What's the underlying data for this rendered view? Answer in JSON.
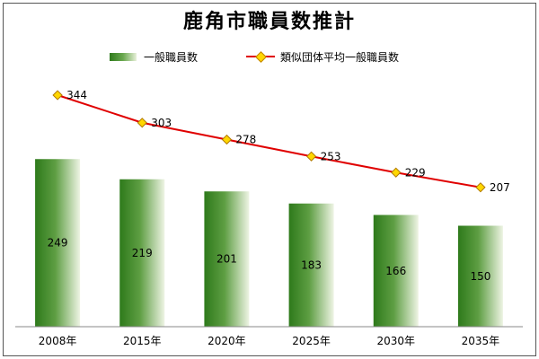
{
  "chart_data": {
    "type": "bar+line",
    "title": "鹿角市職員数推計",
    "categories": [
      "2008年",
      "2015年",
      "2020年",
      "2025年",
      "2030年",
      "2035年"
    ],
    "series": [
      {
        "name": "一般職員数",
        "type": "bar",
        "values": [
          249,
          219,
          201,
          183,
          166,
          150
        ],
        "color": "#3a7d22"
      },
      {
        "name": "類似団体平均一般職員数",
        "type": "line",
        "values": [
          344,
          303,
          278,
          253,
          229,
          207
        ],
        "color": "#e00000",
        "marker_color": "#ffd700"
      }
    ],
    "ylim": [
      0,
      400
    ],
    "grid": false,
    "legend_position": "top"
  }
}
